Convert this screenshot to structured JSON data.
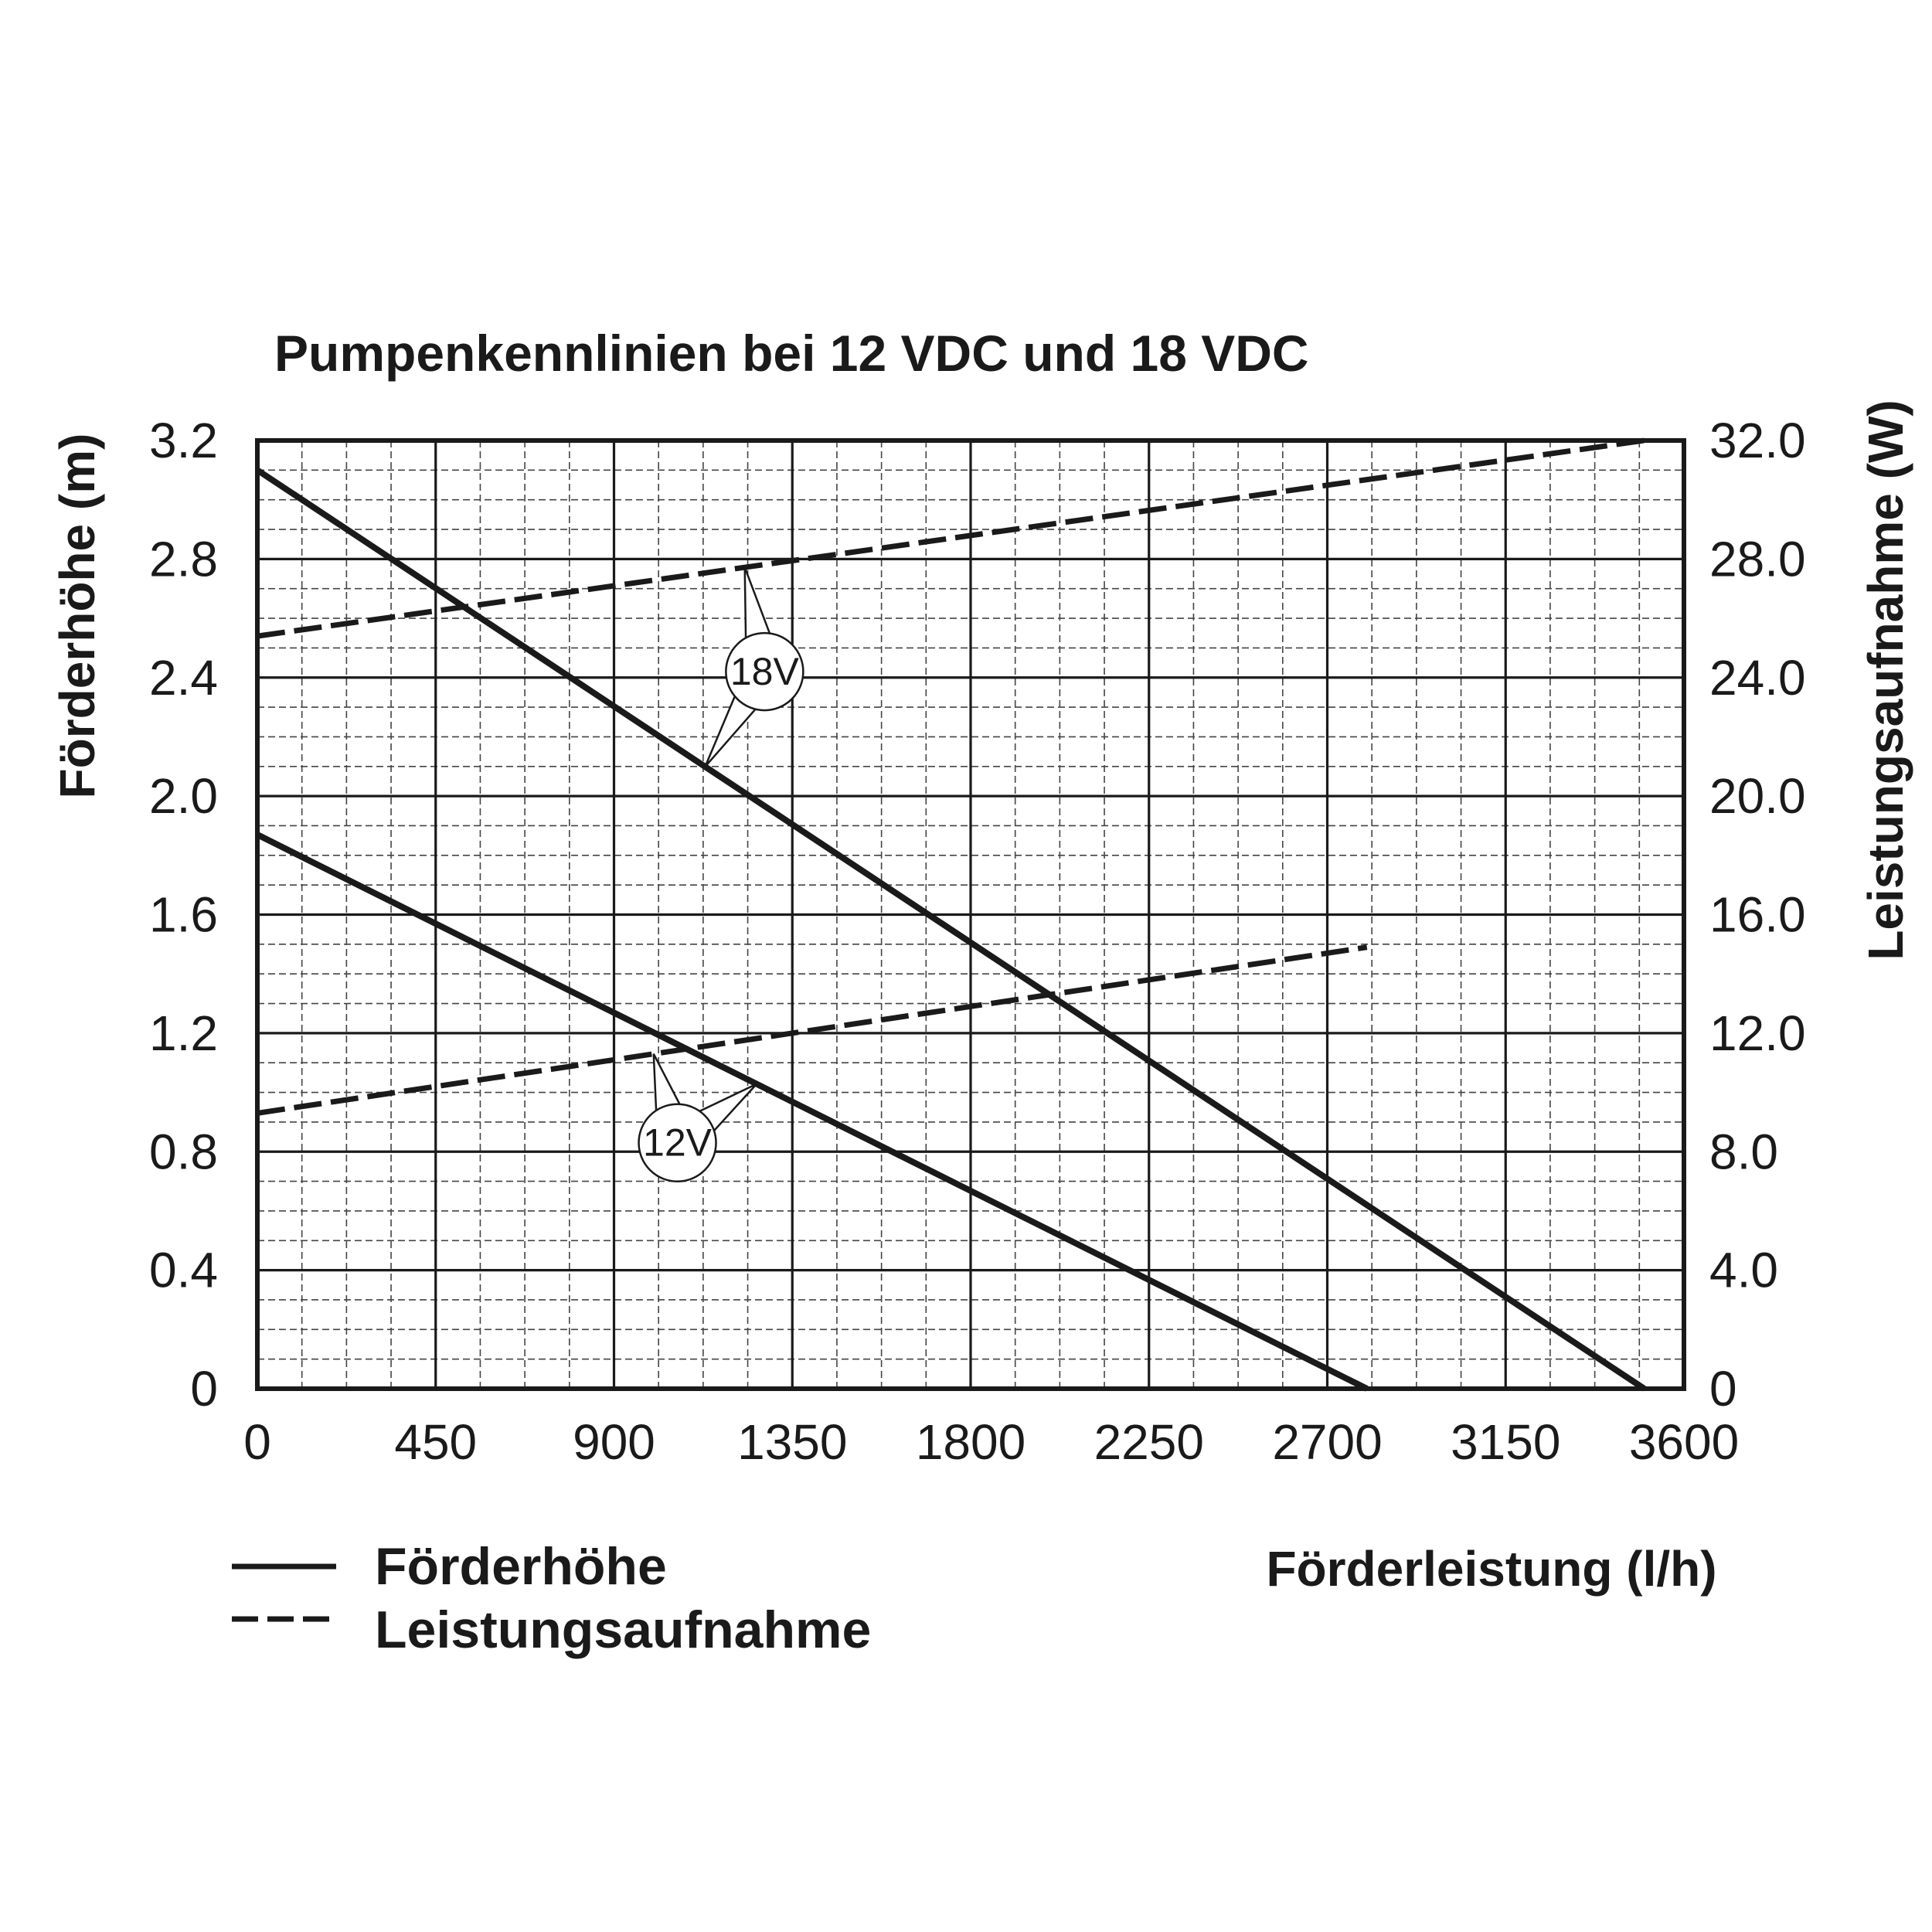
{
  "chart_data": {
    "type": "line",
    "title": "Pumpenkennlinien bei 12 VDC und 18 VDC",
    "xlabel": "Förderleistung (l/h)",
    "ylabel": "Förderhöhe (m)",
    "y2label": "Leistungsaufnahme (W)",
    "xlim": [
      0,
      3600
    ],
    "ylim": [
      0,
      3.2
    ],
    "y2lim": [
      0,
      32.0
    ],
    "x_ticks": [
      "0",
      "450",
      "900",
      "1350",
      "1800",
      "2250",
      "2700",
      "3150",
      "3600"
    ],
    "y_ticks": [
      "0",
      "0.4",
      "0.8",
      "1.2",
      "1.6",
      "2.0",
      "2.4",
      "2.8",
      "3.2"
    ],
    "y2_ticks": [
      "0",
      "4.0",
      "8.0",
      "12.0",
      "16.0",
      "20.0",
      "24.0",
      "28.0",
      "32.0"
    ],
    "grid": true,
    "legend": {
      "placement": "bottom-left",
      "entries": [
        {
          "label": "Förderhöhe",
          "style": "solid"
        },
        {
          "label": "Leistungsaufnahme",
          "style": "dashed"
        }
      ]
    },
    "series": [
      {
        "voltage": "18V",
        "quantity": "Förderhöhe",
        "axis": "left",
        "style": "solid",
        "x": [
          0,
          3500
        ],
        "y": [
          3.1,
          0
        ]
      },
      {
        "voltage": "18V",
        "quantity": "Leistungsaufnahme",
        "axis": "right",
        "style": "dashed",
        "x": [
          0,
          3500
        ],
        "y": [
          25.4,
          32.0
        ]
      },
      {
        "voltage": "12V",
        "quantity": "Förderhöhe",
        "axis": "left",
        "style": "solid",
        "x": [
          0,
          2800
        ],
        "y": [
          1.87,
          0
        ]
      },
      {
        "voltage": "12V",
        "quantity": "Leistungsaufnahme",
        "axis": "right",
        "style": "dashed",
        "x": [
          0,
          2800
        ],
        "y": [
          9.3,
          14.9
        ]
      }
    ],
    "annotations": [
      {
        "text": "18V",
        "x": 1280,
        "y": 2.42
      },
      {
        "text": "12V",
        "x": 1060,
        "y": 0.83
      }
    ]
  }
}
